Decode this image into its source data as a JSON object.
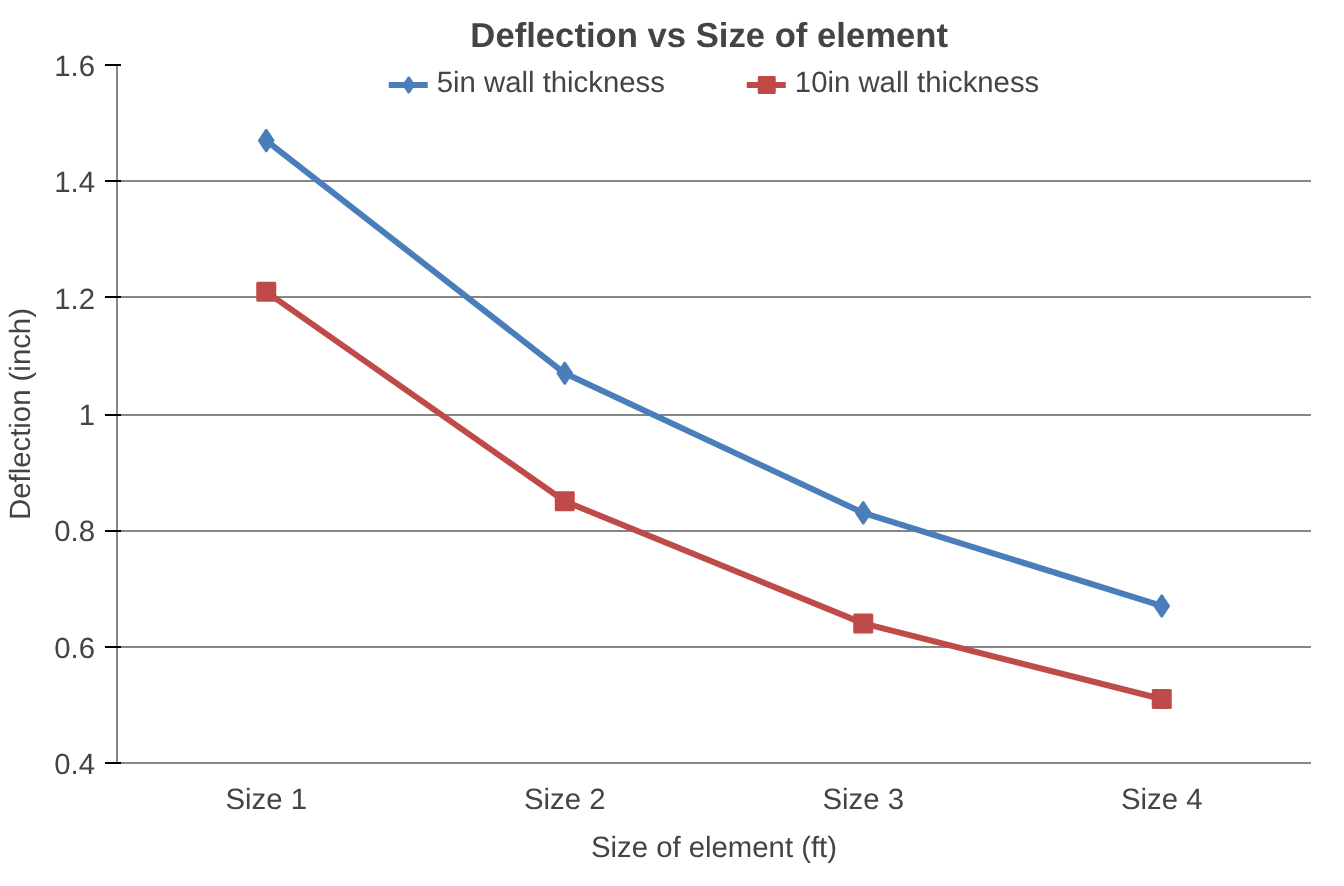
{
  "chart_data": {
    "type": "line",
    "title": "Deflection vs  Size of element",
    "xlabel": "Size of element (ft)",
    "ylabel": "Deflection (inch)",
    "categories": [
      "Size 1",
      "Size 2",
      "Size 3",
      "Size 4"
    ],
    "series": [
      {
        "name": "5in wall thickness",
        "color": "#4a7ebb",
        "marker": "diamond",
        "values": [
          1.47,
          1.07,
          0.83,
          0.67
        ]
      },
      {
        "name": "10in wall thickness",
        "color": "#be4b48",
        "marker": "square",
        "values": [
          1.21,
          0.85,
          0.64,
          0.51
        ]
      }
    ],
    "ylim": [
      0.4,
      1.6
    ],
    "yticks": [
      0.4,
      0.6,
      0.8,
      1,
      1.2,
      1.4,
      1.6
    ],
    "grid": "y",
    "legend": "top",
    "line_style": "solid"
  }
}
